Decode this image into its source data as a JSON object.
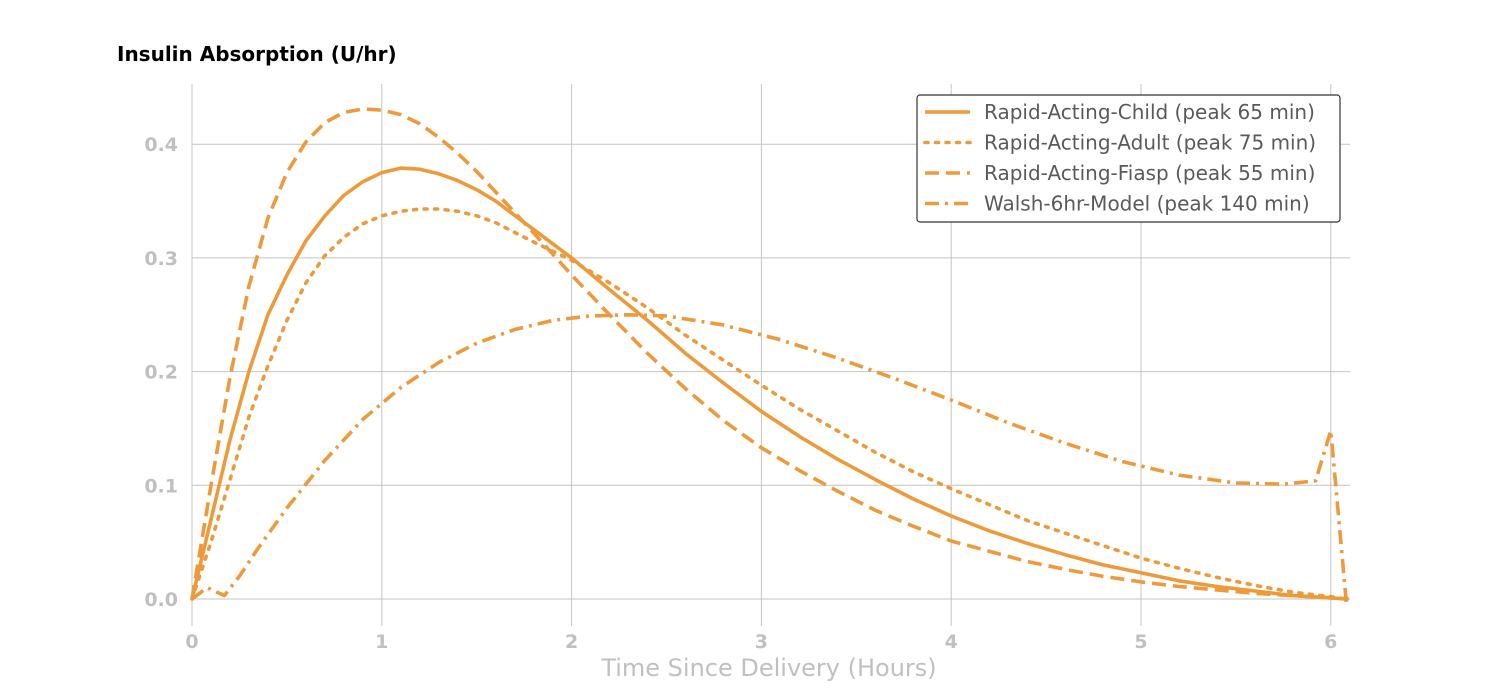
{
  "chart_data": {
    "type": "line",
    "title": "Insulin Absorption (U/hr)",
    "xlabel": "Time Since Delivery (Hours)",
    "ylabel": "",
    "xlim": [
      0,
      6.1
    ],
    "ylim": [
      -0.025,
      0.45
    ],
    "x_ticks": [
      0,
      1,
      2,
      3,
      4,
      5,
      6
    ],
    "y_ticks": [
      0.0,
      0.1,
      0.2,
      0.3,
      0.4
    ],
    "x_tick_labels": [
      "0",
      "1",
      "2",
      "3",
      "4",
      "5",
      "6"
    ],
    "y_tick_labels": [
      "0.0",
      "0.1",
      "0.2",
      "0.3",
      "0.4"
    ],
    "grid": true,
    "legend_position": "top-right",
    "series_color": "#ee9a3a",
    "series": [
      {
        "name": "Rapid-Acting-Child (peak 65 min)",
        "style": "solid",
        "x": [
          0,
          0.1,
          0.2,
          0.3,
          0.4,
          0.5,
          0.6,
          0.7,
          0.8,
          0.9,
          1.0,
          1.1,
          1.2,
          1.3,
          1.4,
          1.5,
          1.6,
          1.8,
          2.0,
          2.2,
          2.4,
          2.6,
          2.8,
          3.0,
          3.2,
          3.4,
          3.6,
          3.8,
          4.0,
          4.2,
          4.4,
          4.6,
          4.8,
          5.0,
          5.2,
          5.4,
          5.6,
          5.8,
          6.0,
          6.08
        ],
        "y": [
          0,
          0.07,
          0.14,
          0.2,
          0.25,
          0.285,
          0.315,
          0.337,
          0.355,
          0.367,
          0.375,
          0.379,
          0.378,
          0.374,
          0.368,
          0.36,
          0.35,
          0.325,
          0.3,
          0.272,
          0.245,
          0.216,
          0.19,
          0.165,
          0.143,
          0.123,
          0.105,
          0.088,
          0.073,
          0.06,
          0.049,
          0.039,
          0.03,
          0.023,
          0.016,
          0.011,
          0.007,
          0.003,
          0.001,
          0
        ]
      },
      {
        "name": "Rapid-Acting-Adult (peak 75 min)",
        "style": "dotted",
        "x": [
          0,
          0.1,
          0.2,
          0.3,
          0.4,
          0.5,
          0.6,
          0.7,
          0.8,
          0.9,
          1.0,
          1.1,
          1.2,
          1.3,
          1.4,
          1.5,
          1.6,
          1.8,
          2.0,
          2.2,
          2.4,
          2.6,
          2.8,
          3.0,
          3.2,
          3.4,
          3.6,
          3.8,
          4.0,
          4.2,
          4.4,
          4.6,
          4.8,
          5.0,
          5.2,
          5.4,
          5.6,
          5.8,
          6.0,
          6.08
        ],
        "y": [
          0,
          0.05,
          0.105,
          0.16,
          0.205,
          0.245,
          0.278,
          0.302,
          0.318,
          0.33,
          0.337,
          0.341,
          0.343,
          0.343,
          0.341,
          0.337,
          0.331,
          0.314,
          0.298,
          0.278,
          0.256,
          0.232,
          0.21,
          0.188,
          0.167,
          0.148,
          0.129,
          0.112,
          0.097,
          0.083,
          0.069,
          0.058,
          0.047,
          0.036,
          0.027,
          0.019,
          0.012,
          0.006,
          0.002,
          0
        ]
      },
      {
        "name": "Rapid-Acting-Fiasp (peak 55 min)",
        "style": "dashed",
        "x": [
          0,
          0.1,
          0.2,
          0.3,
          0.4,
          0.5,
          0.6,
          0.7,
          0.8,
          0.9,
          1.0,
          1.1,
          1.2,
          1.3,
          1.4,
          1.5,
          1.6,
          1.8,
          2.0,
          2.2,
          2.4,
          2.6,
          2.8,
          3.0,
          3.2,
          3.4,
          3.6,
          3.8,
          4.0,
          4.2,
          4.4,
          4.6,
          4.8,
          5.0,
          5.2,
          5.4,
          5.6,
          5.8,
          6.0,
          6.08
        ],
        "y": [
          0,
          0.1,
          0.195,
          0.275,
          0.335,
          0.375,
          0.402,
          0.419,
          0.428,
          0.431,
          0.43,
          0.426,
          0.418,
          0.406,
          0.392,
          0.376,
          0.358,
          0.322,
          0.285,
          0.25,
          0.216,
          0.185,
          0.157,
          0.133,
          0.113,
          0.095,
          0.078,
          0.064,
          0.051,
          0.042,
          0.033,
          0.026,
          0.02,
          0.015,
          0.011,
          0.008,
          0.005,
          0.003,
          0.001,
          0
        ]
      },
      {
        "name": "Walsh-6hr-Model (peak 140 min)",
        "style": "dashdot",
        "x": [
          0,
          0.08,
          0.17,
          0.25,
          0.35,
          0.5,
          0.7,
          0.9,
          1.1,
          1.3,
          1.5,
          1.7,
          1.9,
          2.1,
          2.3,
          2.5,
          2.8,
          3.1,
          3.4,
          3.7,
          4.0,
          4.3,
          4.6,
          4.9,
          5.2,
          5.5,
          5.75,
          5.92,
          6.0,
          6.08
        ],
        "y": [
          0,
          0.01,
          0.003,
          0.02,
          0.045,
          0.08,
          0.122,
          0.158,
          0.186,
          0.208,
          0.225,
          0.237,
          0.245,
          0.249,
          0.25,
          0.249,
          0.241,
          0.228,
          0.212,
          0.194,
          0.175,
          0.155,
          0.137,
          0.121,
          0.109,
          0.102,
          0.101,
          0.104,
          0.148,
          0
        ]
      }
    ]
  }
}
